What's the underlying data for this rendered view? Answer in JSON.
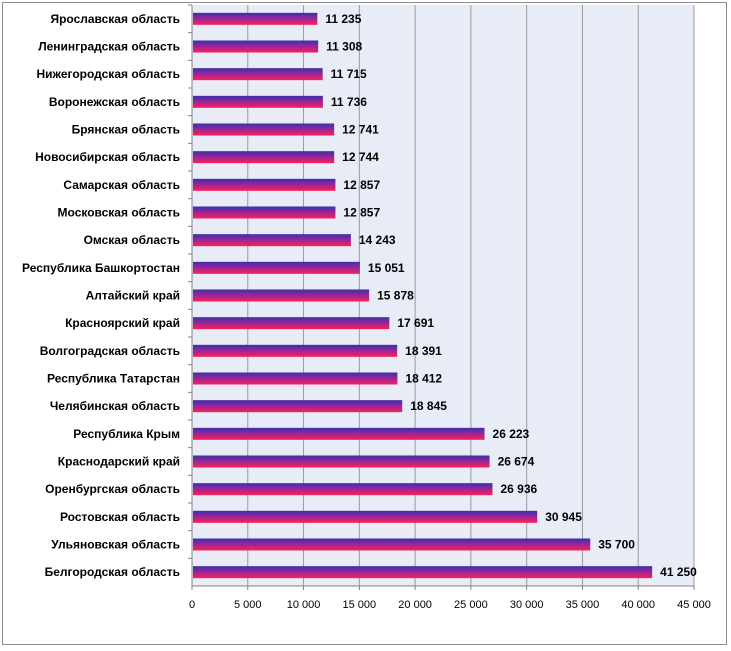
{
  "chart_data": {
    "type": "bar",
    "orientation": "horizontal",
    "categories": [
      "Ярославская область",
      "Ленинградская область",
      "Нижегородская область",
      "Воронежская область",
      "Брянская область",
      "Новосибирская область",
      "Самарская область",
      "Московская область",
      "Омская область",
      "Республика Башкортостан",
      "Алтайский край",
      "Красноярский край",
      "Волгоградская область",
      "Республика Татарстан",
      "Челябинская область",
      "Республика Крым",
      "Краснодарский край",
      "Оренбургская область",
      "Ростовская область",
      "Ульяновская область",
      "Белгородская область"
    ],
    "values": [
      11235,
      11308,
      11715,
      11736,
      12741,
      12744,
      12857,
      12857,
      14243,
      15051,
      15878,
      17691,
      18391,
      18412,
      18845,
      26223,
      26674,
      26936,
      30945,
      35700,
      41250
    ],
    "value_labels": [
      "11 235",
      "11 308",
      "11 715",
      "11 736",
      "12 741",
      "12 744",
      "12 857",
      "12 857",
      "14 243",
      "15 051",
      "15 878",
      "17 691",
      "18 391",
      "18 412",
      "18 845",
      "26 223",
      "26 674",
      "26 936",
      "30 945",
      "35 700",
      "41 250"
    ],
    "x_ticks": [
      "0",
      "5 000",
      "10 000",
      "15 000",
      "20 000",
      "25 000",
      "30 000",
      "35 000",
      "40 000",
      "45 000"
    ],
    "xlim": [
      0,
      45000
    ],
    "grid": true,
    "colors": {
      "plot_background": "#e8ecf7",
      "bar_top": "#3a2fa8",
      "bar_bottom": "#ff1f57",
      "gridline": "#9a9a9a"
    }
  }
}
